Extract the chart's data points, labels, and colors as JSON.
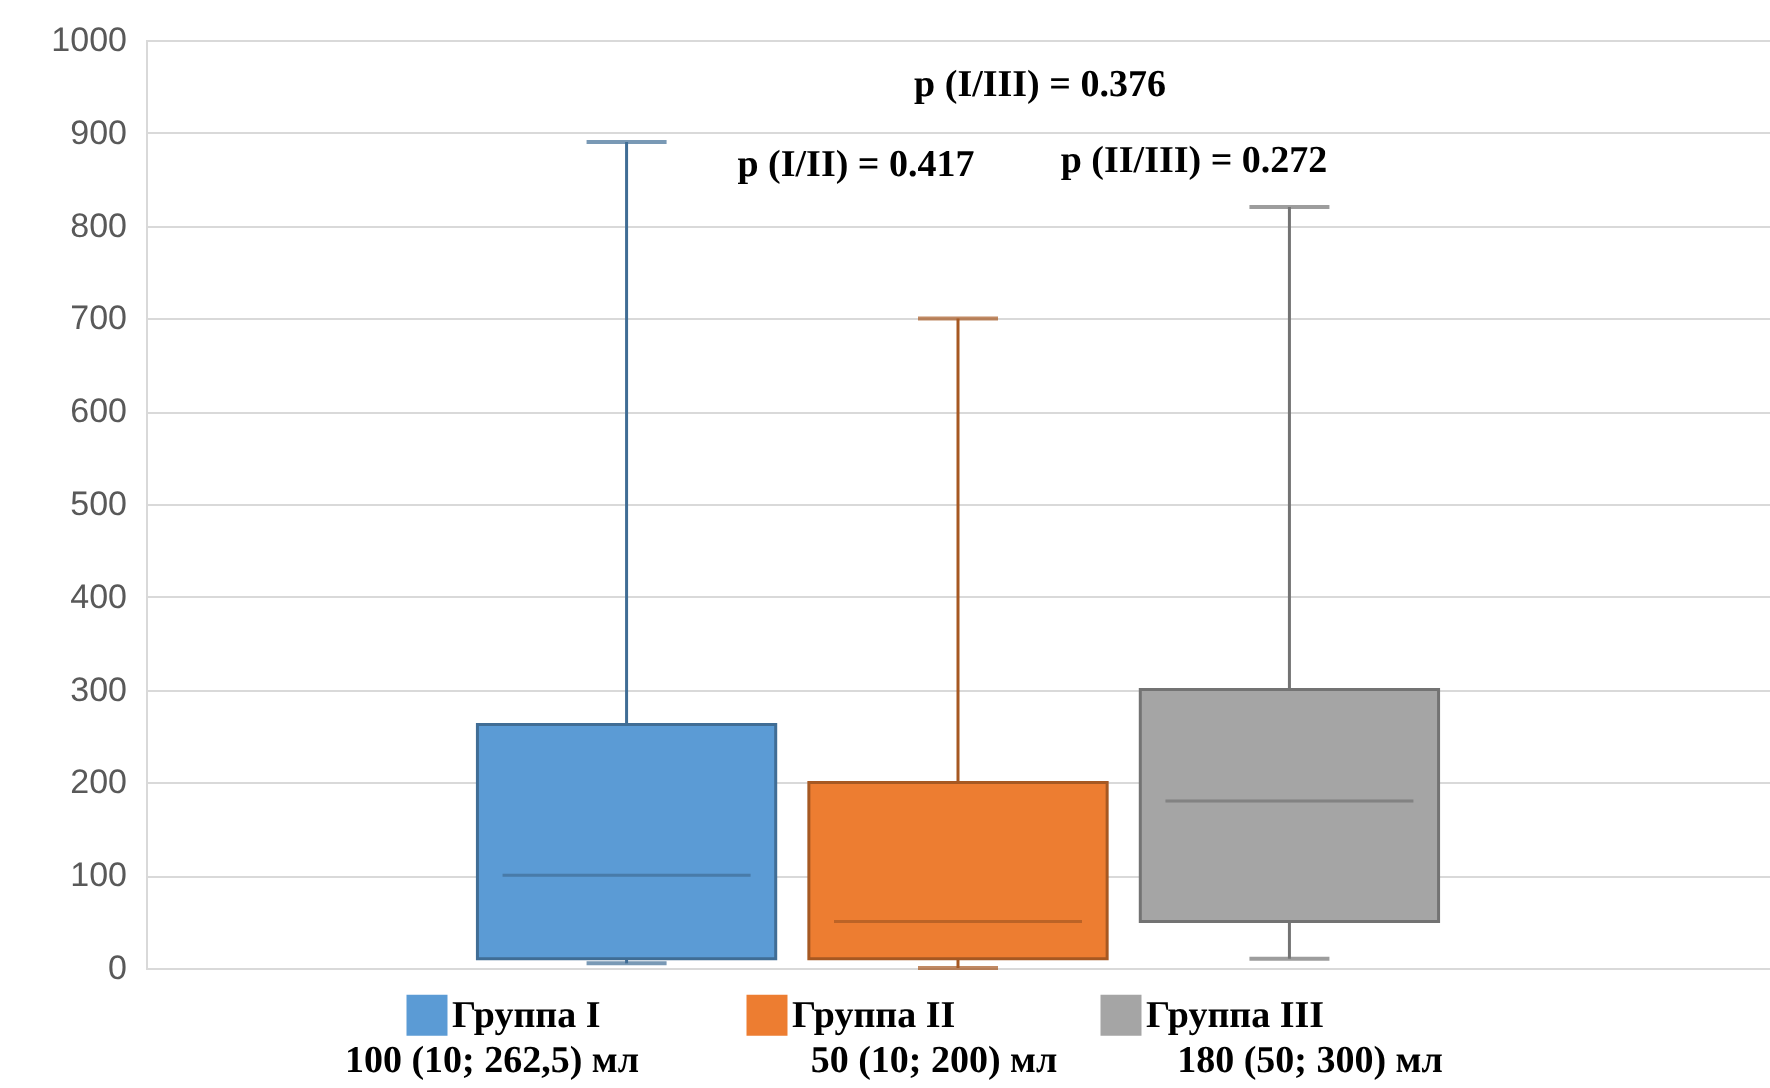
{
  "chart_data": {
    "type": "box",
    "categories": [
      null
    ],
    "series": [
      {
        "name": "Группа I",
        "color": "#5b9bd5",
        "boxes": [
          {
            "low": 5,
            "q1": 10,
            "median": 100,
            "q3": 262.5,
            "high": 890
          }
        ]
      },
      {
        "name": "Группа II",
        "color": "#ed7d31",
        "boxes": [
          {
            "low": 0,
            "q1": 10,
            "median": 50,
            "q3": 200,
            "high": 700
          }
        ]
      },
      {
        "name": "Группа III",
        "color": "#a5a5a5",
        "boxes": [
          {
            "low": 10,
            "q1": 50,
            "median": 180,
            "q3": 300,
            "high": 820
          }
        ]
      }
    ],
    "ylim": [
      0,
      1000
    ],
    "yticks": [
      0,
      100,
      200,
      300,
      400,
      500,
      600,
      700,
      800,
      900,
      1000
    ],
    "grid": "y",
    "legend": "bottom",
    "annotations": [
      "p (I/III) = 0.376",
      "p (I/II) = 0.417",
      "p (II/III) = 0.272",
      "100 (10; 262,5) мл",
      "50 (10; 200) мл",
      "180 (50; 300) мл"
    ]
  }
}
